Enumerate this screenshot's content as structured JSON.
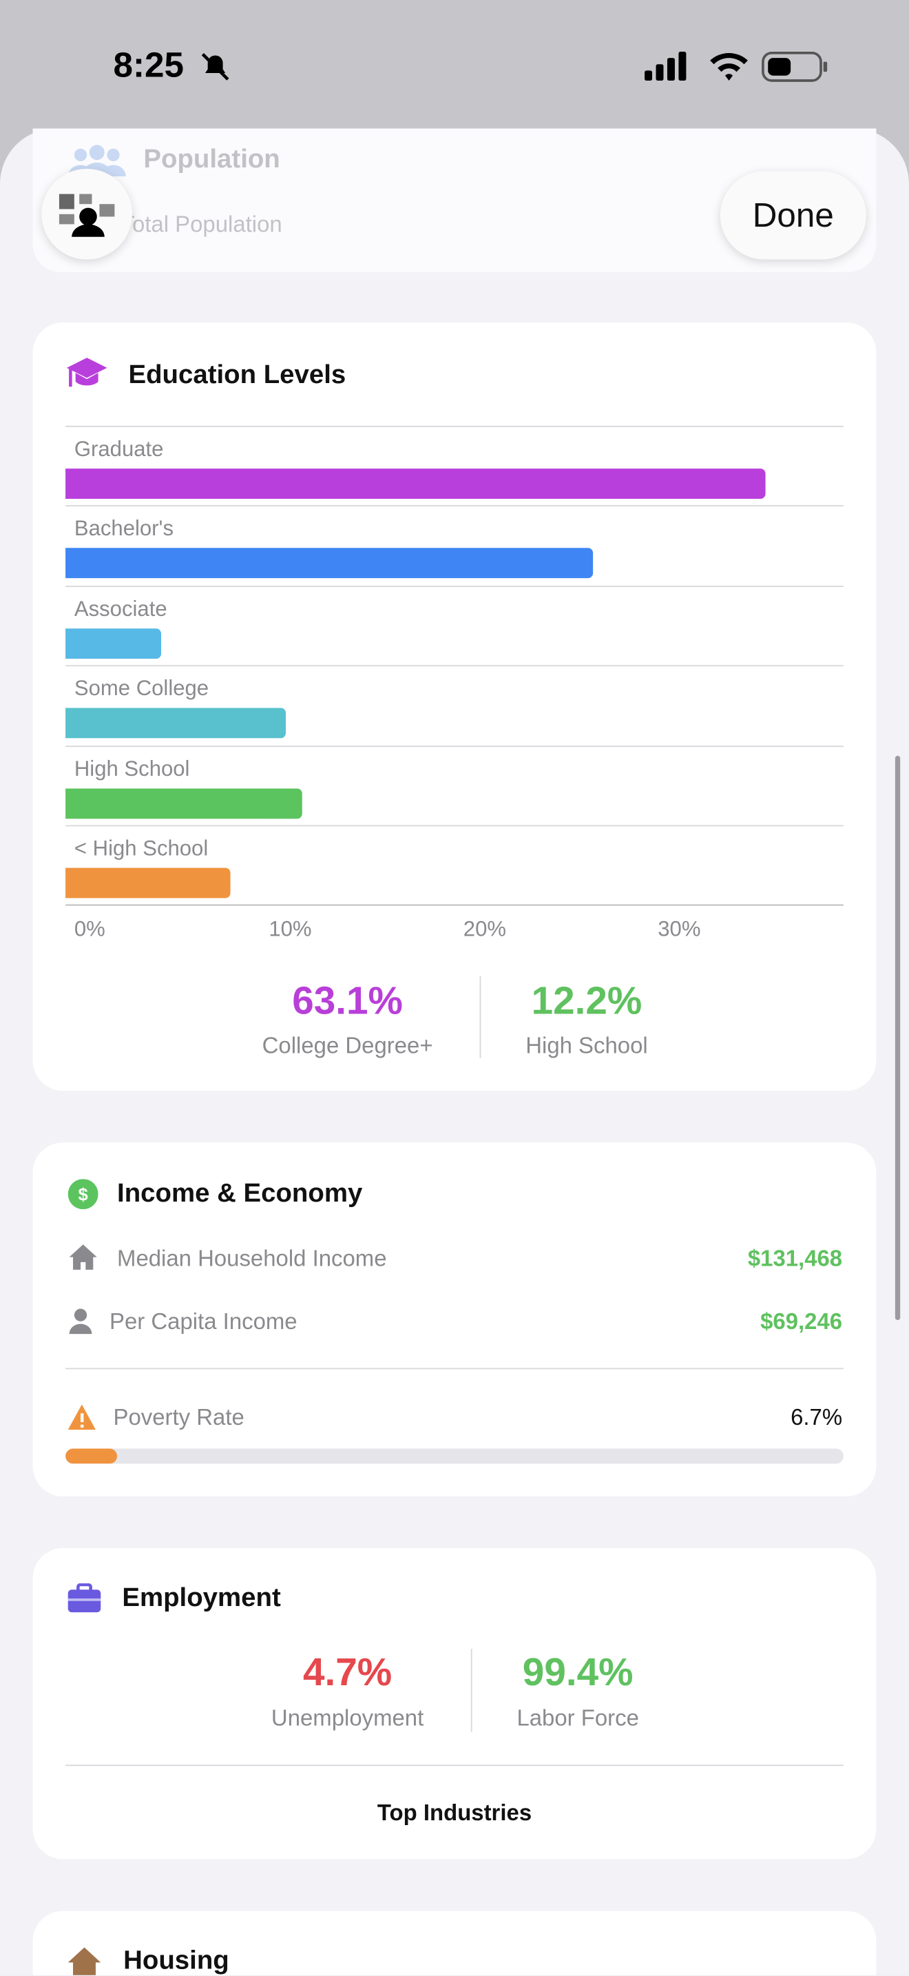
{
  "status": {
    "time": "8:25"
  },
  "header": {
    "section": "Population",
    "subtitle": "Total Population",
    "done": "Done"
  },
  "education": {
    "title": "Education Levels",
    "chart_data": {
      "type": "bar",
      "orientation": "horizontal",
      "categories": [
        "Graduate",
        "Bachelor's",
        "Associate",
        "Some College",
        "High School",
        "< High School"
      ],
      "values": [
        36.0,
        27.1,
        4.9,
        11.3,
        12.2,
        8.5
      ],
      "colors": [
        "#b93fdc",
        "#3f86f4",
        "#57b9e6",
        "#58c1cd",
        "#5cc45e",
        "#f0933e"
      ],
      "xlim": [
        0,
        40
      ],
      "xticks": [
        {
          "value": 0,
          "label": "0%"
        },
        {
          "value": 10,
          "label": "10%"
        },
        {
          "value": 20,
          "label": "20%"
        },
        {
          "value": 30,
          "label": "30%"
        }
      ]
    },
    "stats": [
      {
        "value": "63.1%",
        "label": "College Degree+",
        "color": "#b83fd8"
      },
      {
        "value": "12.2%",
        "label": "High School",
        "color": "#5fc15f"
      }
    ]
  },
  "income": {
    "title": "Income & Economy",
    "rows": [
      {
        "label": "Median Household Income",
        "value": "$131,468"
      },
      {
        "label": "Per Capita Income",
        "value": "$69,246"
      }
    ],
    "poverty": {
      "label": "Poverty Rate",
      "value": 6.7,
      "value_label": "6.7%",
      "lim": [
        0,
        100
      ],
      "color": "#f0933e"
    }
  },
  "employment": {
    "title": "Employment",
    "stats": [
      {
        "value": "4.7%",
        "label": "Unemployment",
        "color": "#e5484d"
      },
      {
        "value": "99.4%",
        "label": "Labor Force",
        "color": "#5fc15f"
      }
    ],
    "footer": "Top Industries"
  },
  "housing": {
    "title": "Housing"
  }
}
